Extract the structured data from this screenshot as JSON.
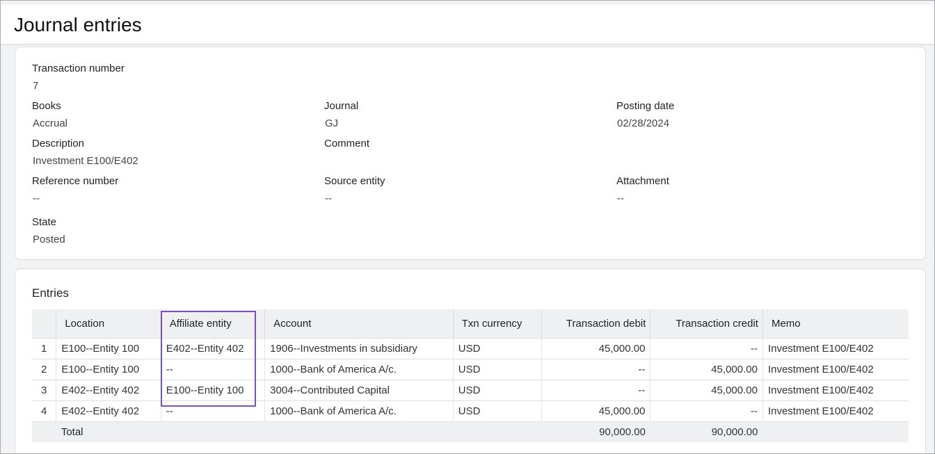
{
  "header": {
    "title": "Journal entries"
  },
  "details": {
    "transaction_number": {
      "label": "Transaction number",
      "value": "7"
    },
    "books": {
      "label": "Books",
      "value": "Accrual"
    },
    "journal": {
      "label": "Journal",
      "value": "GJ"
    },
    "posting_date": {
      "label": "Posting date",
      "value": "02/28/2024"
    },
    "description": {
      "label": "Description",
      "value": "Investment E100/E402"
    },
    "comment": {
      "label": "Comment"
    },
    "reference_number": {
      "label": "Reference number",
      "value": "--"
    },
    "source_entity": {
      "label": "Source entity",
      "value": "--"
    },
    "attachment": {
      "label": "Attachment",
      "value": "--"
    },
    "state": {
      "label": "State",
      "value": "Posted"
    }
  },
  "entries": {
    "title": "Entries",
    "table": {
      "columns": [
        "Location",
        "Affiliate entity",
        "Account",
        "Txn currency",
        "Transaction debit",
        "Transaction credit",
        "Memo"
      ],
      "rows": [
        [
          "1",
          "E100--Entity 100",
          "E402--Entity 402",
          "1906--Investments in subsidiary",
          "USD",
          "45,000.00",
          "--",
          "Investment E100/E402"
        ],
        [
          "2",
          "E100--Entity 100",
          "--",
          "1000--Bank of America A/c.",
          "USD",
          "--",
          "45,000.00",
          "Investment E100/E402"
        ],
        [
          "3",
          "E402--Entity 402",
          "E100--Entity 100",
          "3004--Contributed Capital",
          "USD",
          "--",
          "45,000.00",
          "Investment E100/E402"
        ],
        [
          "4",
          "E402--Entity 402",
          "--",
          "1000--Bank of America A/c.",
          "USD",
          "45,000.00",
          "--",
          "Investment E100/E402"
        ]
      ],
      "total": {
        "label": "Total",
        "debit": "90,000.00",
        "credit": "90,000.00"
      }
    }
  }
}
